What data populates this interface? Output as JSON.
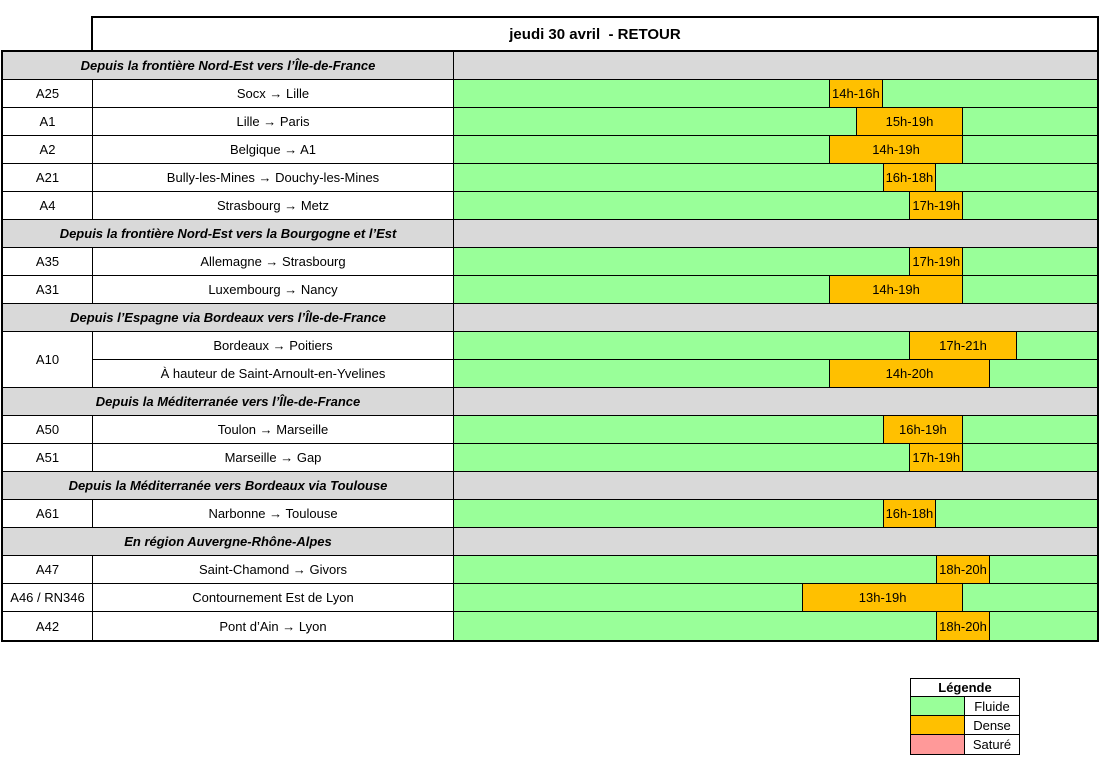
{
  "colors": {
    "fluide": "#99FF99",
    "dense": "#FFC000",
    "sature": "#FF9999",
    "section_bg": "#D9D9D9",
    "border": "#000000"
  },
  "chart_data": {
    "type": "heatmap",
    "title": "jeudi 30 avril  - RETOUR",
    "x_axis": {
      "unit": "hour",
      "min": 0,
      "max": 24,
      "ticks_visible": false
    },
    "default_status": "Fluide",
    "status_colors": {
      "Fluide": "#99FF99",
      "Dense": "#FFC000",
      "Saturé": "#FF9999"
    },
    "sections": [
      {
        "label": "Depuis la frontière Nord-Est vers l’Île-de-France",
        "rows": [
          {
            "road": "A25",
            "route": "Socx → Lille",
            "segments": [
              {
                "label": "14h-16h",
                "start": 14,
                "end": 16,
                "status": "Dense"
              }
            ]
          },
          {
            "road": "A1",
            "route": "Lille → Paris",
            "segments": [
              {
                "label": "15h-19h",
                "start": 15,
                "end": 19,
                "status": "Dense"
              }
            ]
          },
          {
            "road": "A2",
            "route": "Belgique → A1",
            "segments": [
              {
                "label": "14h-19h",
                "start": 14,
                "end": 19,
                "status": "Dense"
              }
            ]
          },
          {
            "road": "A21",
            "route": "Bully-les-Mines → Douchy-les-Mines",
            "segments": [
              {
                "label": "16h-18h",
                "start": 16,
                "end": 18,
                "status": "Dense"
              }
            ]
          },
          {
            "road": "A4",
            "route": "Strasbourg → Metz",
            "segments": [
              {
                "label": "17h-19h",
                "start": 17,
                "end": 19,
                "status": "Dense"
              }
            ]
          }
        ]
      },
      {
        "label": "Depuis la frontière Nord-Est vers la Bourgogne et l’Est",
        "rows": [
          {
            "road": "A35",
            "route": "Allemagne → Strasbourg",
            "segments": [
              {
                "label": "17h-19h",
                "start": 17,
                "end": 19,
                "status": "Dense"
              }
            ]
          },
          {
            "road": "A31",
            "route": "Luxembourg → Nancy",
            "segments": [
              {
                "label": "14h-19h",
                "start": 14,
                "end": 19,
                "status": "Dense"
              }
            ]
          }
        ]
      },
      {
        "label": "Depuis l’Espagne via Bordeaux vers l’Île-de-France",
        "rows": [
          {
            "road": "A10",
            "rowspan": 2,
            "sub_rows": [
              {
                "route": "Bordeaux → Poitiers",
                "segments": [
                  {
                    "label": "17h-21h",
                    "start": 17,
                    "end": 21,
                    "status": "Dense"
                  }
                ]
              },
              {
                "route": "À hauteur de Saint-Arnoult-en-Yvelines",
                "segments": [
                  {
                    "label": "14h-20h",
                    "start": 14,
                    "end": 20,
                    "status": "Dense"
                  }
                ]
              }
            ]
          }
        ]
      },
      {
        "label": "Depuis la Méditerranée vers l’Île-de-France",
        "rows": [
          {
            "road": "A50",
            "route": "Toulon → Marseille",
            "segments": [
              {
                "label": "16h-19h",
                "start": 16,
                "end": 19,
                "status": "Dense"
              }
            ]
          },
          {
            "road": "A51",
            "route": "Marseille → Gap",
            "segments": [
              {
                "label": "17h-19h",
                "start": 17,
                "end": 19,
                "status": "Dense"
              }
            ]
          }
        ]
      },
      {
        "label": "Depuis la Méditerranée vers Bordeaux via Toulouse",
        "rows": [
          {
            "road": "A61",
            "route": "Narbonne → Toulouse",
            "segments": [
              {
                "label": "16h-18h",
                "start": 16,
                "end": 18,
                "status": "Dense"
              }
            ]
          }
        ]
      },
      {
        "label": "En région Auvergne-Rhône-Alpes",
        "rows": [
          {
            "road": "A47",
            "route": "Saint-Chamond → Givors",
            "segments": [
              {
                "label": "18h-20h",
                "start": 18,
                "end": 20,
                "status": "Dense"
              }
            ]
          },
          {
            "road": "A46 / RN346",
            "route": "Contournement Est de Lyon",
            "segments": [
              {
                "label": "13h-19h",
                "start": 13,
                "end": 19,
                "status": "Dense"
              }
            ]
          },
          {
            "road": "A42",
            "route": "Pont d’Ain → Lyon",
            "segments": [
              {
                "label": "18h-20h",
                "start": 18,
                "end": 20,
                "status": "Dense"
              }
            ]
          }
        ]
      }
    ]
  },
  "legend": {
    "title": "Légende",
    "items": [
      {
        "label": "Fluide",
        "color": "#99FF99"
      },
      {
        "label": "Dense",
        "color": "#FFC000"
      },
      {
        "label": "Saturé",
        "color": "#FF9999"
      }
    ]
  }
}
